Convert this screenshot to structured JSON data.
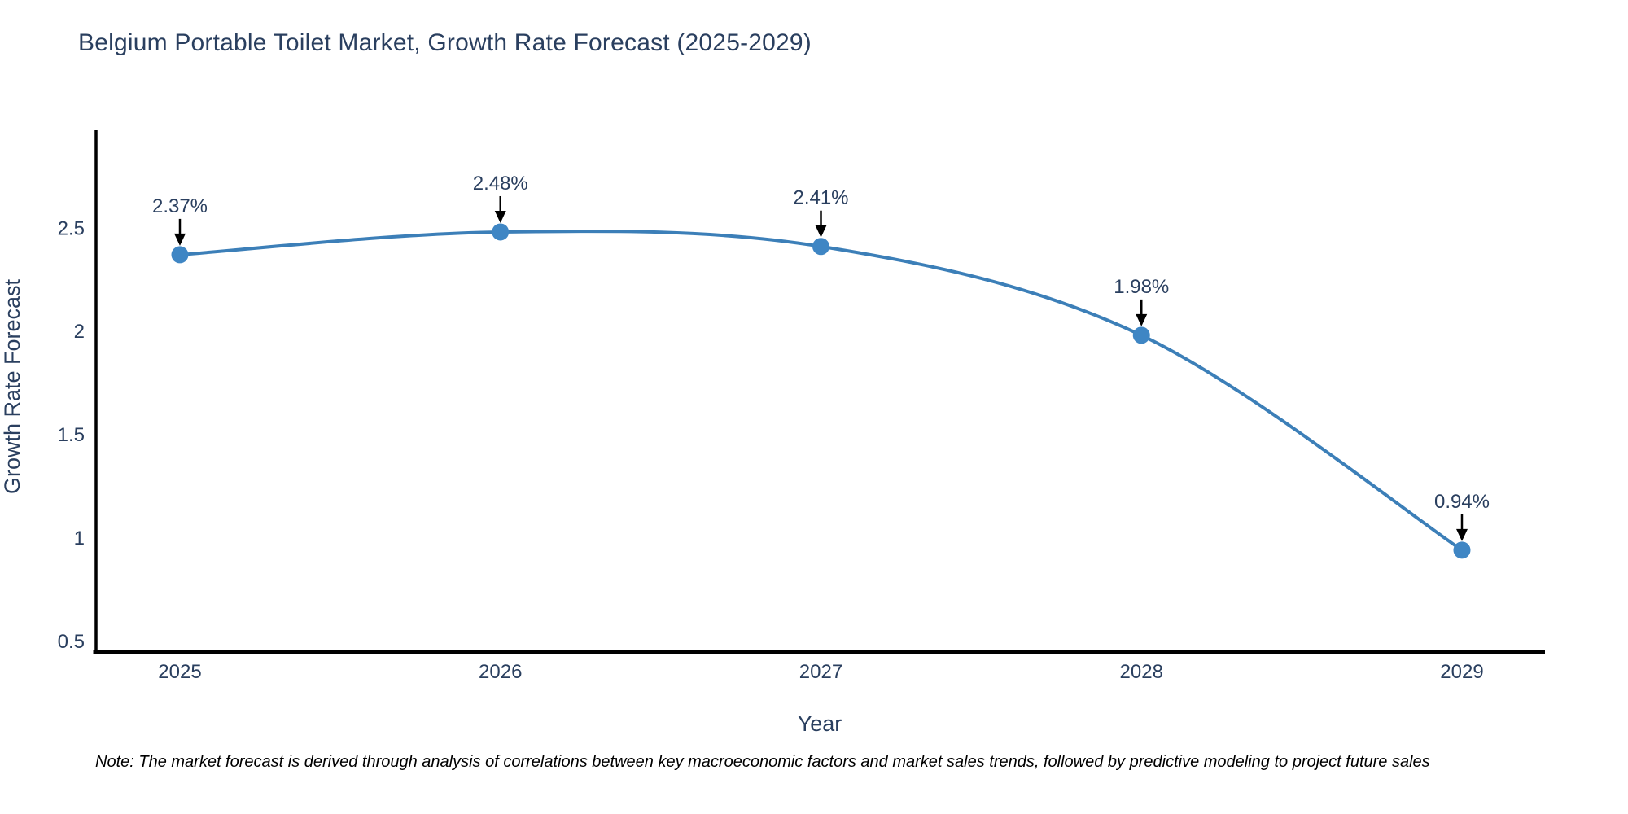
{
  "chart_data": {
    "type": "line",
    "title": "Belgium Portable Toilet Market, Growth Rate Forecast (2025-2029)",
    "xlabel": "Year",
    "ylabel": "Growth Rate Forecast",
    "x": [
      2025,
      2026,
      2027,
      2028,
      2029
    ],
    "xticklabels": [
      "2025",
      "2026",
      "2027",
      "2028",
      "2029"
    ],
    "series": [
      {
        "name": "Growth Rate Forecast",
        "values": [
          2.37,
          2.48,
          2.41,
          1.98,
          0.94
        ]
      }
    ],
    "point_labels": [
      "2.37%",
      "2.48%",
      "2.41%",
      "1.98%",
      "0.94%"
    ],
    "yticks": [
      0.5,
      1,
      1.5,
      2,
      2.5
    ],
    "ylim": [
      0.45,
      2.97
    ],
    "grid": false,
    "legend": "none",
    "line_shape": "spline",
    "line_color": "#3c7fb8",
    "marker_color": "#3f86c4",
    "axis_color": "#000000",
    "text_color": "#2a3f5f",
    "annotation_color": "#000000"
  },
  "note": {
    "text": "Note: The market forecast is derived through analysis of correlations between key macroeconomic factors and market sales trends, followed by predictive modeling to project future sales"
  }
}
